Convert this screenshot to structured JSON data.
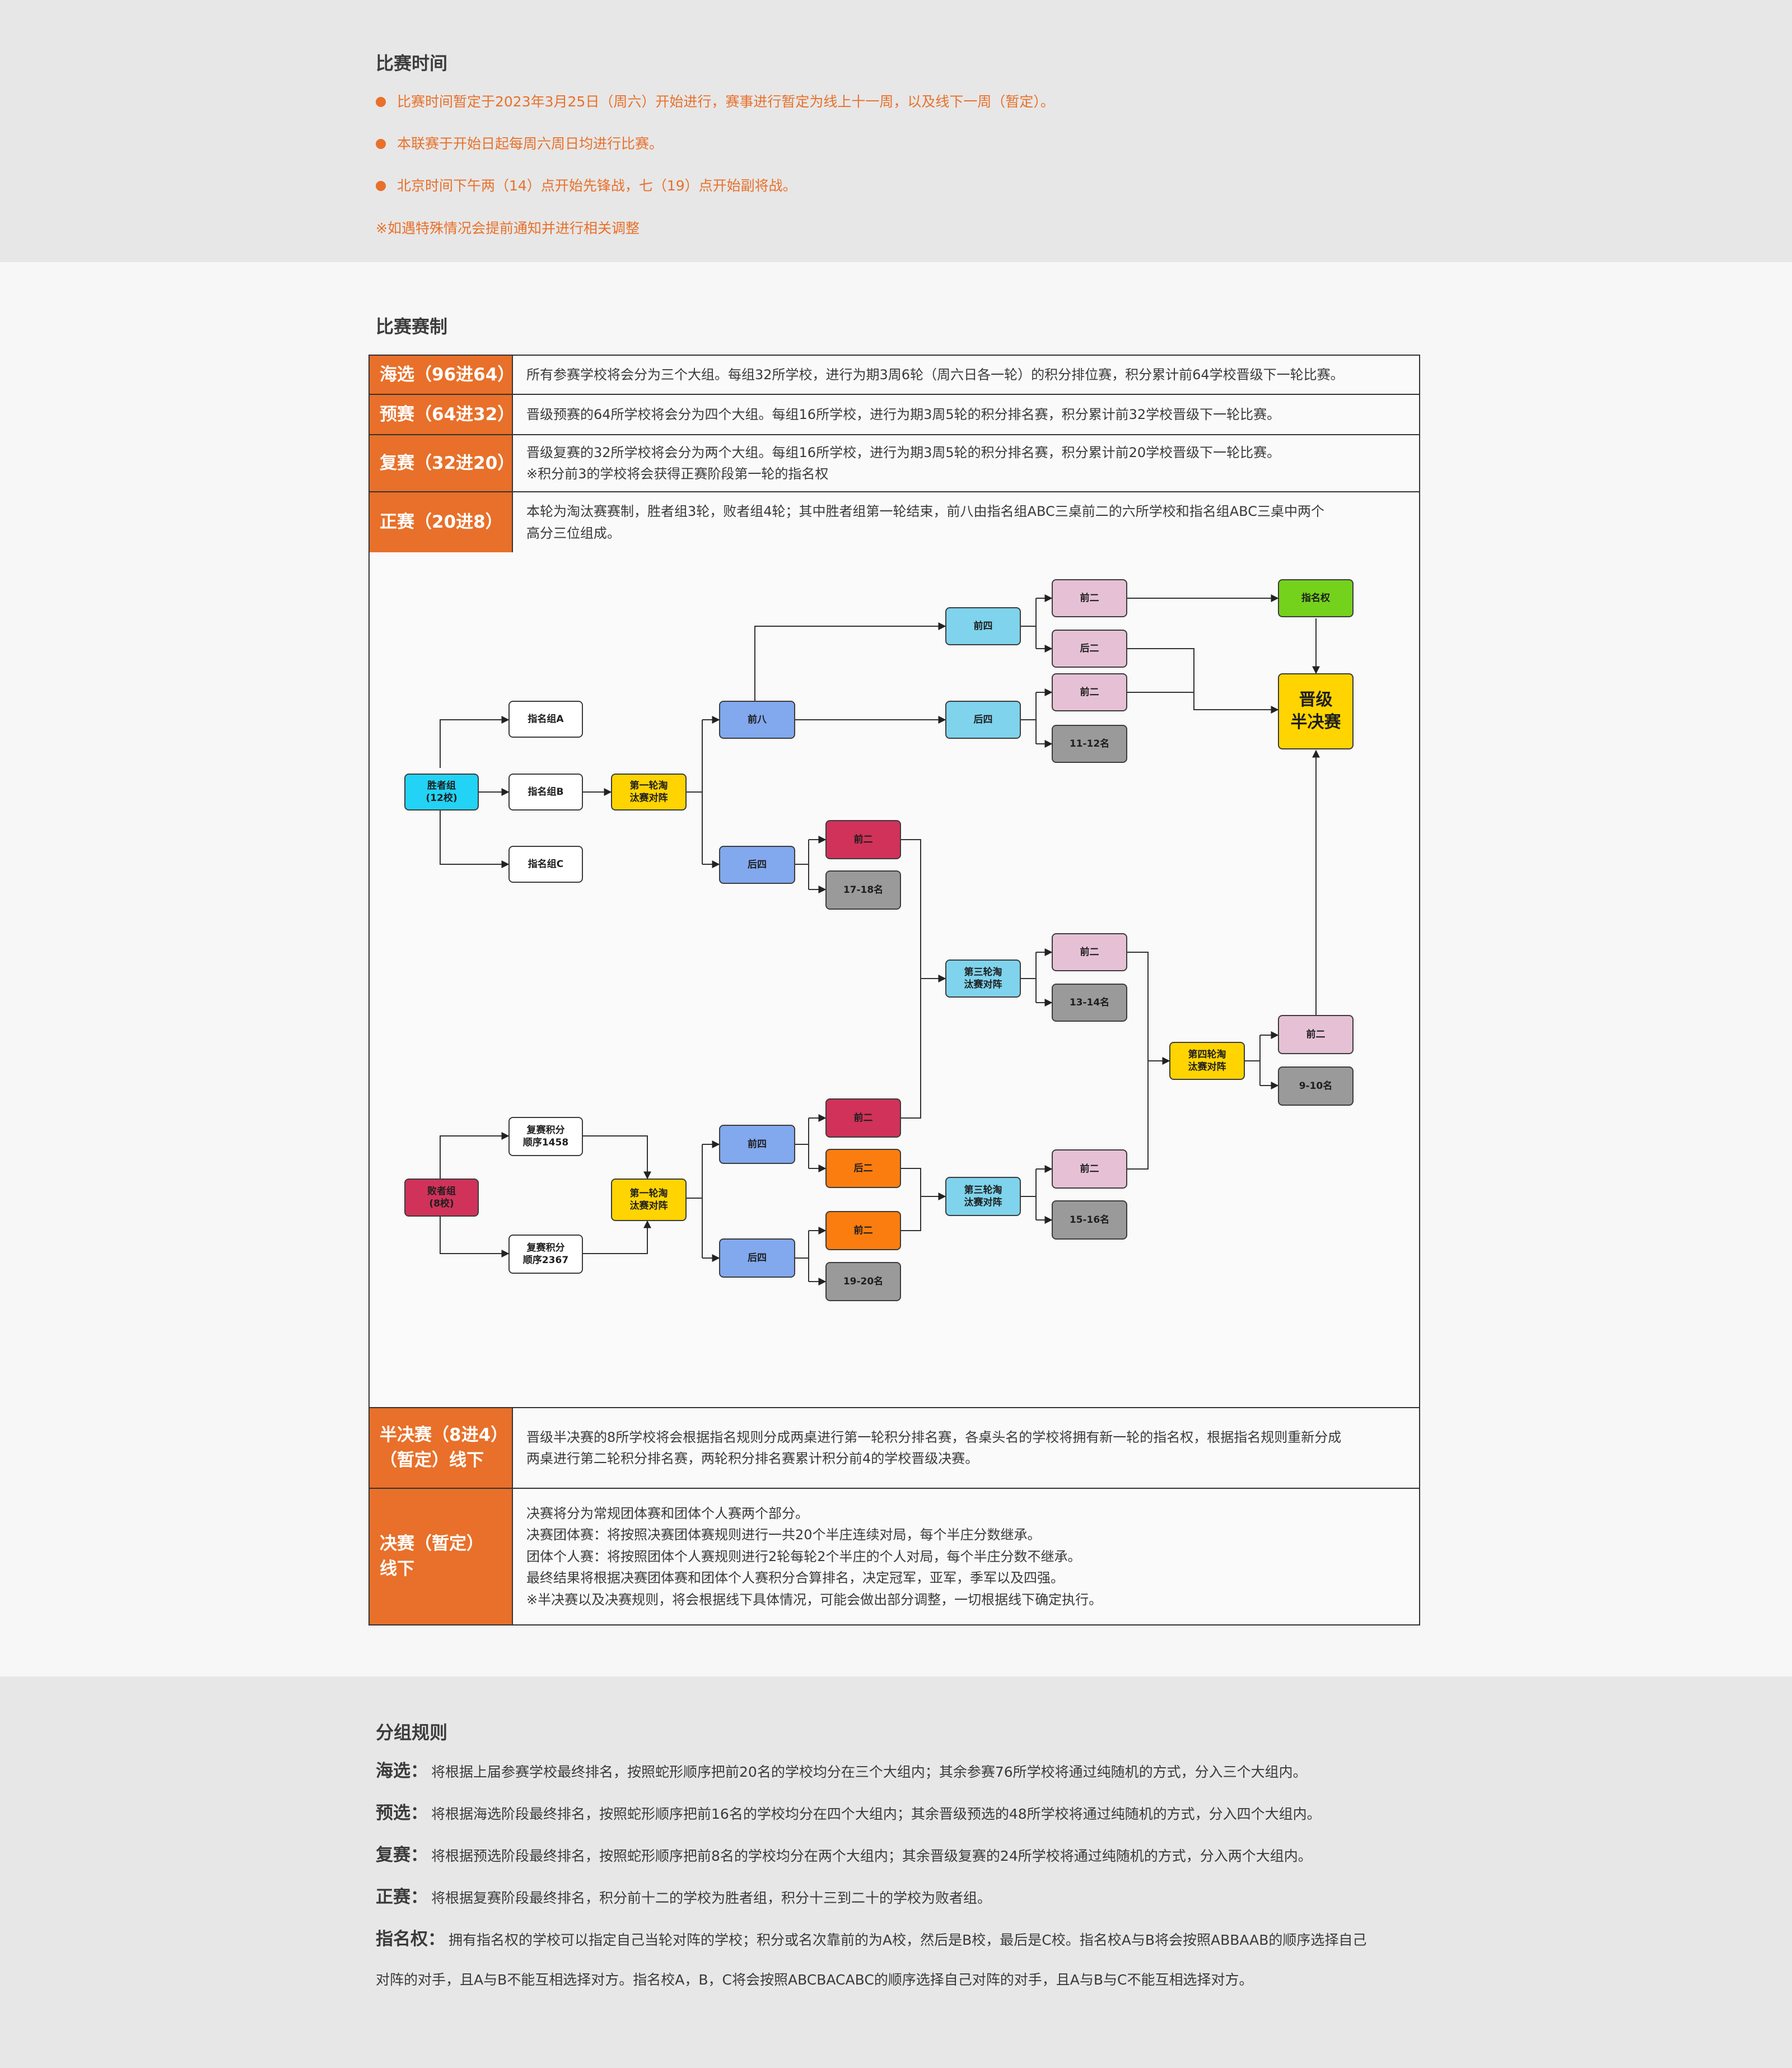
{
  "schedule": {
    "title": "比赛时间",
    "items": [
      "比赛时间暂定于2023年3月25日（周六）开始进行，赛事进行暂定为线上十一周，以及线下一周（暂定）。",
      "本联赛于开始日起每周六周日均进行比赛。",
      "北京时间下午两（14）点开始先锋战，七（19）点开始副将战。"
    ],
    "note": "※如遇特殊情况会提前通知并进行相关调整"
  },
  "format": {
    "title": "比赛赛制",
    "rows": [
      {
        "label": "海选（96进64）",
        "text": [
          "所有参赛学校将会分为三个大组。每组32所学校，进行为期3周6轮（周六日各一轮）的积分排位赛，积分累计前64学校晋级下一轮比赛。"
        ]
      },
      {
        "label": "预赛（64进32）",
        "text": [
          "晋级预赛的64所学校将会分为四个大组。每组16所学校，进行为期3周5轮的积分排名赛，积分累计前32学校晋级下一轮比赛。"
        ]
      },
      {
        "label": "复赛（32进20）",
        "text": [
          "晋级复赛的32所学校将会分为两个大组。每组16所学校，进行为期3周5轮的积分排名赛，积分累计前20学校晋级下一轮比赛。",
          "※积分前3的学校将会获得正赛阶段第一轮的指名权"
        ]
      },
      {
        "label": "正赛（20进8）",
        "text": [
          "本轮为淘汰赛赛制，胜者组3轮，败者组4轮；其中胜者组第一轮结束，前八由指名组ABC三桌前二的六所学校和指名组ABC三桌中两个",
          "高分三位组成。"
        ]
      },
      {
        "label": [
          "半决赛（8进4）",
          "（暂定）线下"
        ],
        "text": [
          "晋级半决赛的8所学校将会根据指名规则分成两桌进行第一轮积分排名赛，各桌头名的学校将拥有新一轮的指名权，根据指名规则重新分成",
          "两桌进行第二轮积分排名赛，两轮积分排名赛累计积分前4的学校晋级决赛。"
        ]
      },
      {
        "label": [
          "决赛（暂定）",
          "线下"
        ],
        "text": [
          "决赛将分为常规团体赛和团体个人赛两个部分。",
          "决赛团体赛：将按照决赛团体赛规则进行一共20个半庄连续对局，每个半庄分数继承。",
          "团体个人赛：将按照团体个人赛规则进行2轮每轮2个半庄的个人对局，每个半庄分数不继承。",
          "最终结果将根据决赛团体赛和团体个人赛积分合算排名，决定冠军，亚军，季军以及四强。",
          "※半决赛以及决赛规则，将会根据线下具体情况，可能会做出部分调整，一切根据线下确定执行。"
        ]
      }
    ]
  },
  "bracket": {
    "winners": [
      "胜者组",
      "(12校)"
    ],
    "losers": [
      "败者组",
      "(8校)"
    ],
    "group_a": "指名组A",
    "group_b": "指名组B",
    "group_c": "指名组C",
    "round1": [
      "第一轮淘",
      "汰赛对阵"
    ],
    "top8": "前八",
    "bottom4": "后四",
    "top4": "前四",
    "back4": "后四",
    "top2": "前二",
    "back2": "后二",
    "nomination": "指名权",
    "semifinal": [
      "晋级",
      "半决赛"
    ],
    "rank_11_12": "11-12名",
    "rank_17_18": "17-18名",
    "round3": [
      "第三轮淘",
      "汰赛对阵"
    ],
    "rank_13_14": "13-14名",
    "round4": [
      "第四轮淘",
      "汰赛对阵"
    ],
    "rank_9_10": "9-10名",
    "rank_15_16": "15-16名",
    "rank_19_20": "19-20名",
    "rep_1458": [
      "复赛积分",
      "顺序1458"
    ],
    "rep_2367": [
      "复赛积分",
      "顺序2367"
    ],
    "colors": {
      "cyan": "#22d3f5",
      "yellow": "#ffd400",
      "blue": "#82a8ee",
      "light_blue": "#7fd3ec",
      "pink": "#e6c1d6",
      "gray": "#9a9a9a",
      "green": "#74d21c",
      "crimson": "#d0325a",
      "orange": "#fb7d10"
    }
  },
  "grouping": {
    "title": "分组规则",
    "rules": [
      {
        "name": "海选：",
        "text": "将根据上届参赛学校最终排名，按照蛇形顺序把前20名的学校均分在三个大组内；其余参赛76所学校将通过纯随机的方式，分入三个大组内。"
      },
      {
        "name": "预选：",
        "text": "将根据海选阶段最终排名，按照蛇形顺序把前16名的学校均分在四个大组内；其余晋级预选的48所学校将通过纯随机的方式，分入四个大组内。"
      },
      {
        "name": "复赛：",
        "text": "将根据预选阶段最终排名，按照蛇形顺序把前8名的学校均分在两个大组内；其余晋级复赛的24所学校将通过纯随机的方式，分入两个大组内。"
      },
      {
        "name": "正赛：",
        "text": "将根据复赛阶段最终排名，积分前十二的学校为胜者组，积分十三到二十的学校为败者组。"
      },
      {
        "name": "指名权：",
        "text": "拥有指名权的学校可以指定自己当轮对阵的学校；积分或名次靠前的为A校，然后是B校，最后是C校。指名校A与B将会按照ABBAAB的顺序选择自己"
      }
    ],
    "continuation": "对阵的对手，且A与B不能互相选择对方。指名校A，B，C将会按照ABCBACABC的顺序选择自己对阵的对手，且A与B与C不能互相选择对方。"
  }
}
